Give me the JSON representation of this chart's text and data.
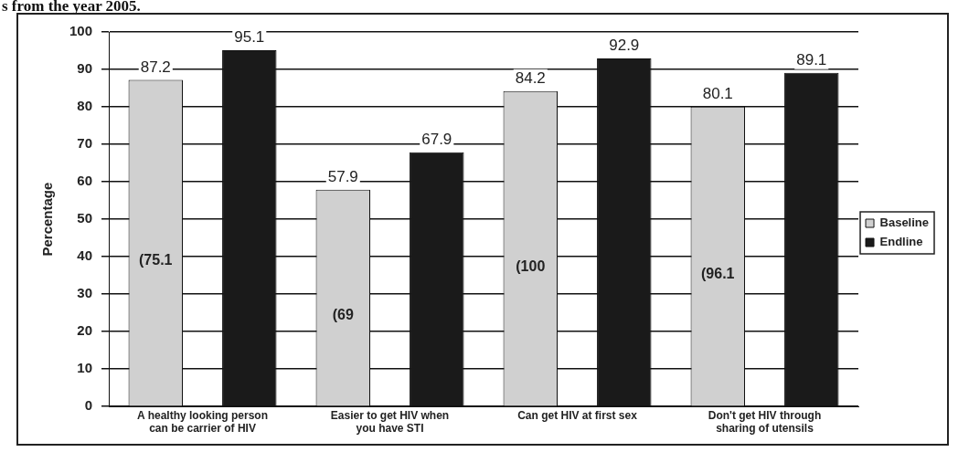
{
  "chart_data": {
    "type": "bar",
    "ylabel": "Percentage",
    "categories": [
      "A healthy looking person can be carrier of HIV",
      "Easier to get HIV when you have STI",
      "Can get HIV at first sex",
      "Don't get HIV through sharing of utensils"
    ],
    "series": [
      {
        "name": "Baseline",
        "color": "#d0d0d0",
        "values": [
          87.2,
          57.9,
          84.2,
          80.1
        ]
      },
      {
        "name": "Endline",
        "color": "#1a1a1a",
        "values": [
          95.1,
          67.9,
          92.9,
          89.1
        ]
      }
    ],
    "ylim": [
      0,
      100
    ],
    "yticks": [
      0,
      10,
      20,
      30,
      40,
      50,
      60,
      70,
      80,
      90,
      100
    ],
    "grid": "y",
    "legend": "right",
    "data_labels": true,
    "annotations": [
      "s from the year 2005.",
      "(75.1",
      "(69",
      "(100",
      "(96.1"
    ]
  }
}
